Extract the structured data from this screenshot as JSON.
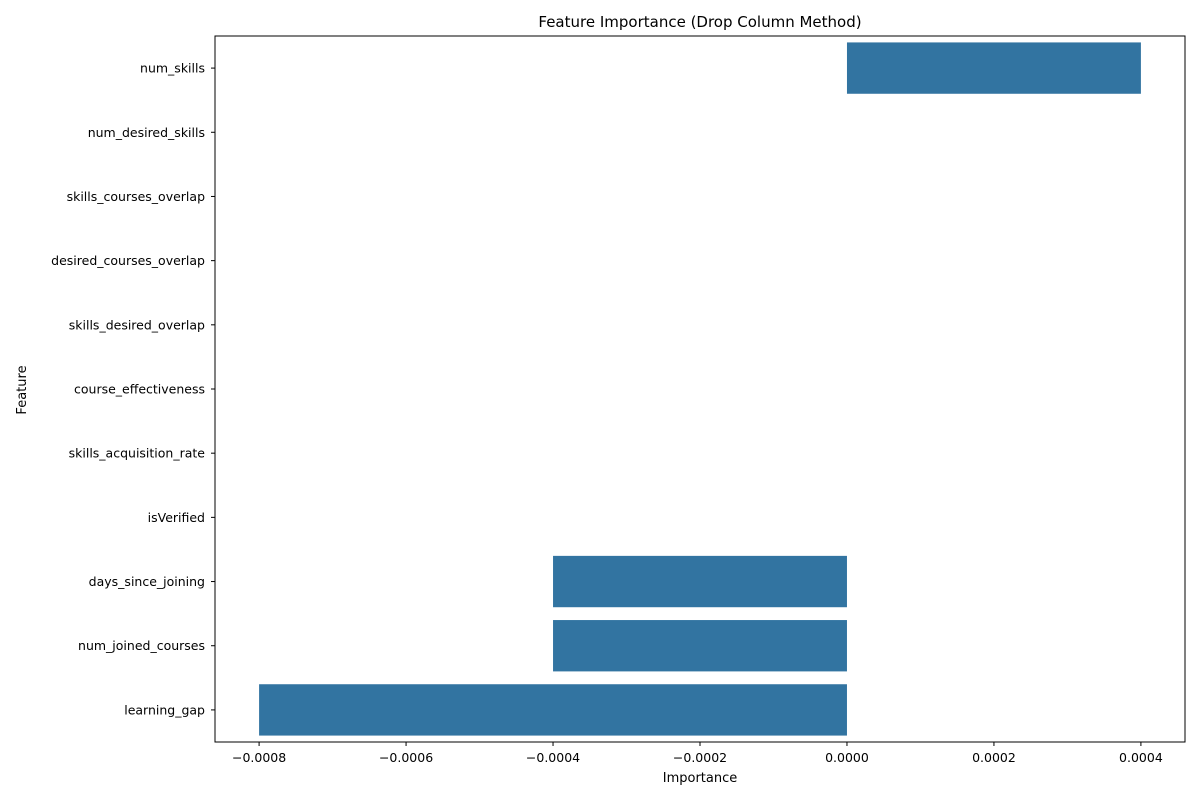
{
  "chart_data": {
    "type": "bar",
    "orientation": "horizontal",
    "title": "Feature Importance (Drop Column Method)",
    "xlabel": "Importance",
    "ylabel": "Feature",
    "categories": [
      "num_skills",
      "num_desired_skills",
      "skills_courses_overlap",
      "desired_courses_overlap",
      "skills_desired_overlap",
      "course_effectiveness",
      "skills_acquisition_rate",
      "isVerified",
      "days_since_joining",
      "num_joined_courses",
      "learning_gap"
    ],
    "values": [
      0.0004,
      0,
      0,
      0,
      0,
      0,
      0,
      0,
      -0.0004,
      -0.0004,
      -0.0008
    ],
    "xlim": [
      -0.00086,
      0.00046
    ],
    "xticks": [
      -0.0008,
      -0.0006,
      -0.0004,
      -0.0002,
      0,
      0.0002,
      0.0004
    ],
    "xtick_labels": [
      "−0.0008",
      "−0.0006",
      "−0.0004",
      "−0.0002",
      "0.0000",
      "0.0002",
      "0.0004"
    ],
    "bar_color": "#3274a1",
    "grid": false,
    "legend": false
  }
}
